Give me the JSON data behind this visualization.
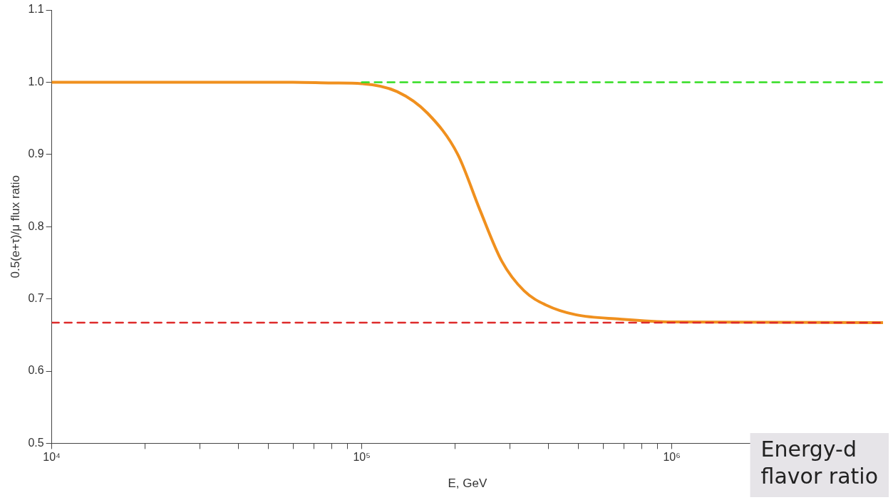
{
  "chart_data": {
    "type": "line",
    "xlabel": "E, GeV",
    "ylabel": "0.5(e+τ)/μ flux ratio",
    "log": "x",
    "grid": false,
    "legend": false,
    "marker": "none",
    "xlim": [
      10000,
      4800000
    ],
    "xticks": [
      {
        "value": 10000,
        "label": "10⁴"
      },
      {
        "value": 20000,
        "label": null
      },
      {
        "value": 30000,
        "label": null
      },
      {
        "value": 40000,
        "label": null
      },
      {
        "value": 50000,
        "label": null
      },
      {
        "value": 60000,
        "label": null
      },
      {
        "value": 70000,
        "label": null
      },
      {
        "value": 80000,
        "label": null
      },
      {
        "value": 90000,
        "label": null
      },
      {
        "value": 100000,
        "label": "10⁵"
      },
      {
        "value": 200000,
        "label": null
      },
      {
        "value": 300000,
        "label": null
      },
      {
        "value": 400000,
        "label": null
      },
      {
        "value": 500000,
        "label": null
      },
      {
        "value": 600000,
        "label": null
      },
      {
        "value": 700000,
        "label": null
      },
      {
        "value": 800000,
        "label": null
      },
      {
        "value": 900000,
        "label": null
      },
      {
        "value": 1000000,
        "label": "10⁶"
      },
      {
        "value": 2000000,
        "label": null
      },
      {
        "value": 3000000,
        "label": null
      },
      {
        "value": 4000000,
        "label": null
      }
    ],
    "ylim": [
      0.5,
      1.1
    ],
    "yticks": [
      0.5,
      0.6,
      0.7,
      0.8,
      0.9,
      {
        "value": 1,
        "label": "1.0"
      },
      1.1
    ],
    "series": [
      {
        "color": "#dd2a2a",
        "line_style": "dashed",
        "x": [
          10000,
          4800000
        ],
        "values": [
          0.667,
          0.667
        ]
      },
      {
        "color": "#33dd22",
        "line_style": "dashed",
        "x": [
          100000,
          4800000
        ],
        "values": [
          1,
          1
        ]
      },
      {
        "color": "#f0901e",
        "line_style": "solid",
        "x": [
          10000,
          30000,
          60000,
          80000,
          100000,
          130000,
          163000,
          204000,
          240000,
          283000,
          334000,
          395000,
          490000,
          680000,
          1000000,
          4800000
        ],
        "values": [
          1,
          1,
          1,
          0.999,
          0.998,
          0.987,
          0.957,
          0.9,
          0.824,
          0.752,
          0.711,
          0.691,
          0.678,
          0.672,
          0.668,
          0.667
        ]
      }
    ],
    "annotations": [
      "Energy-d",
      "flavor ratio"
    ]
  }
}
